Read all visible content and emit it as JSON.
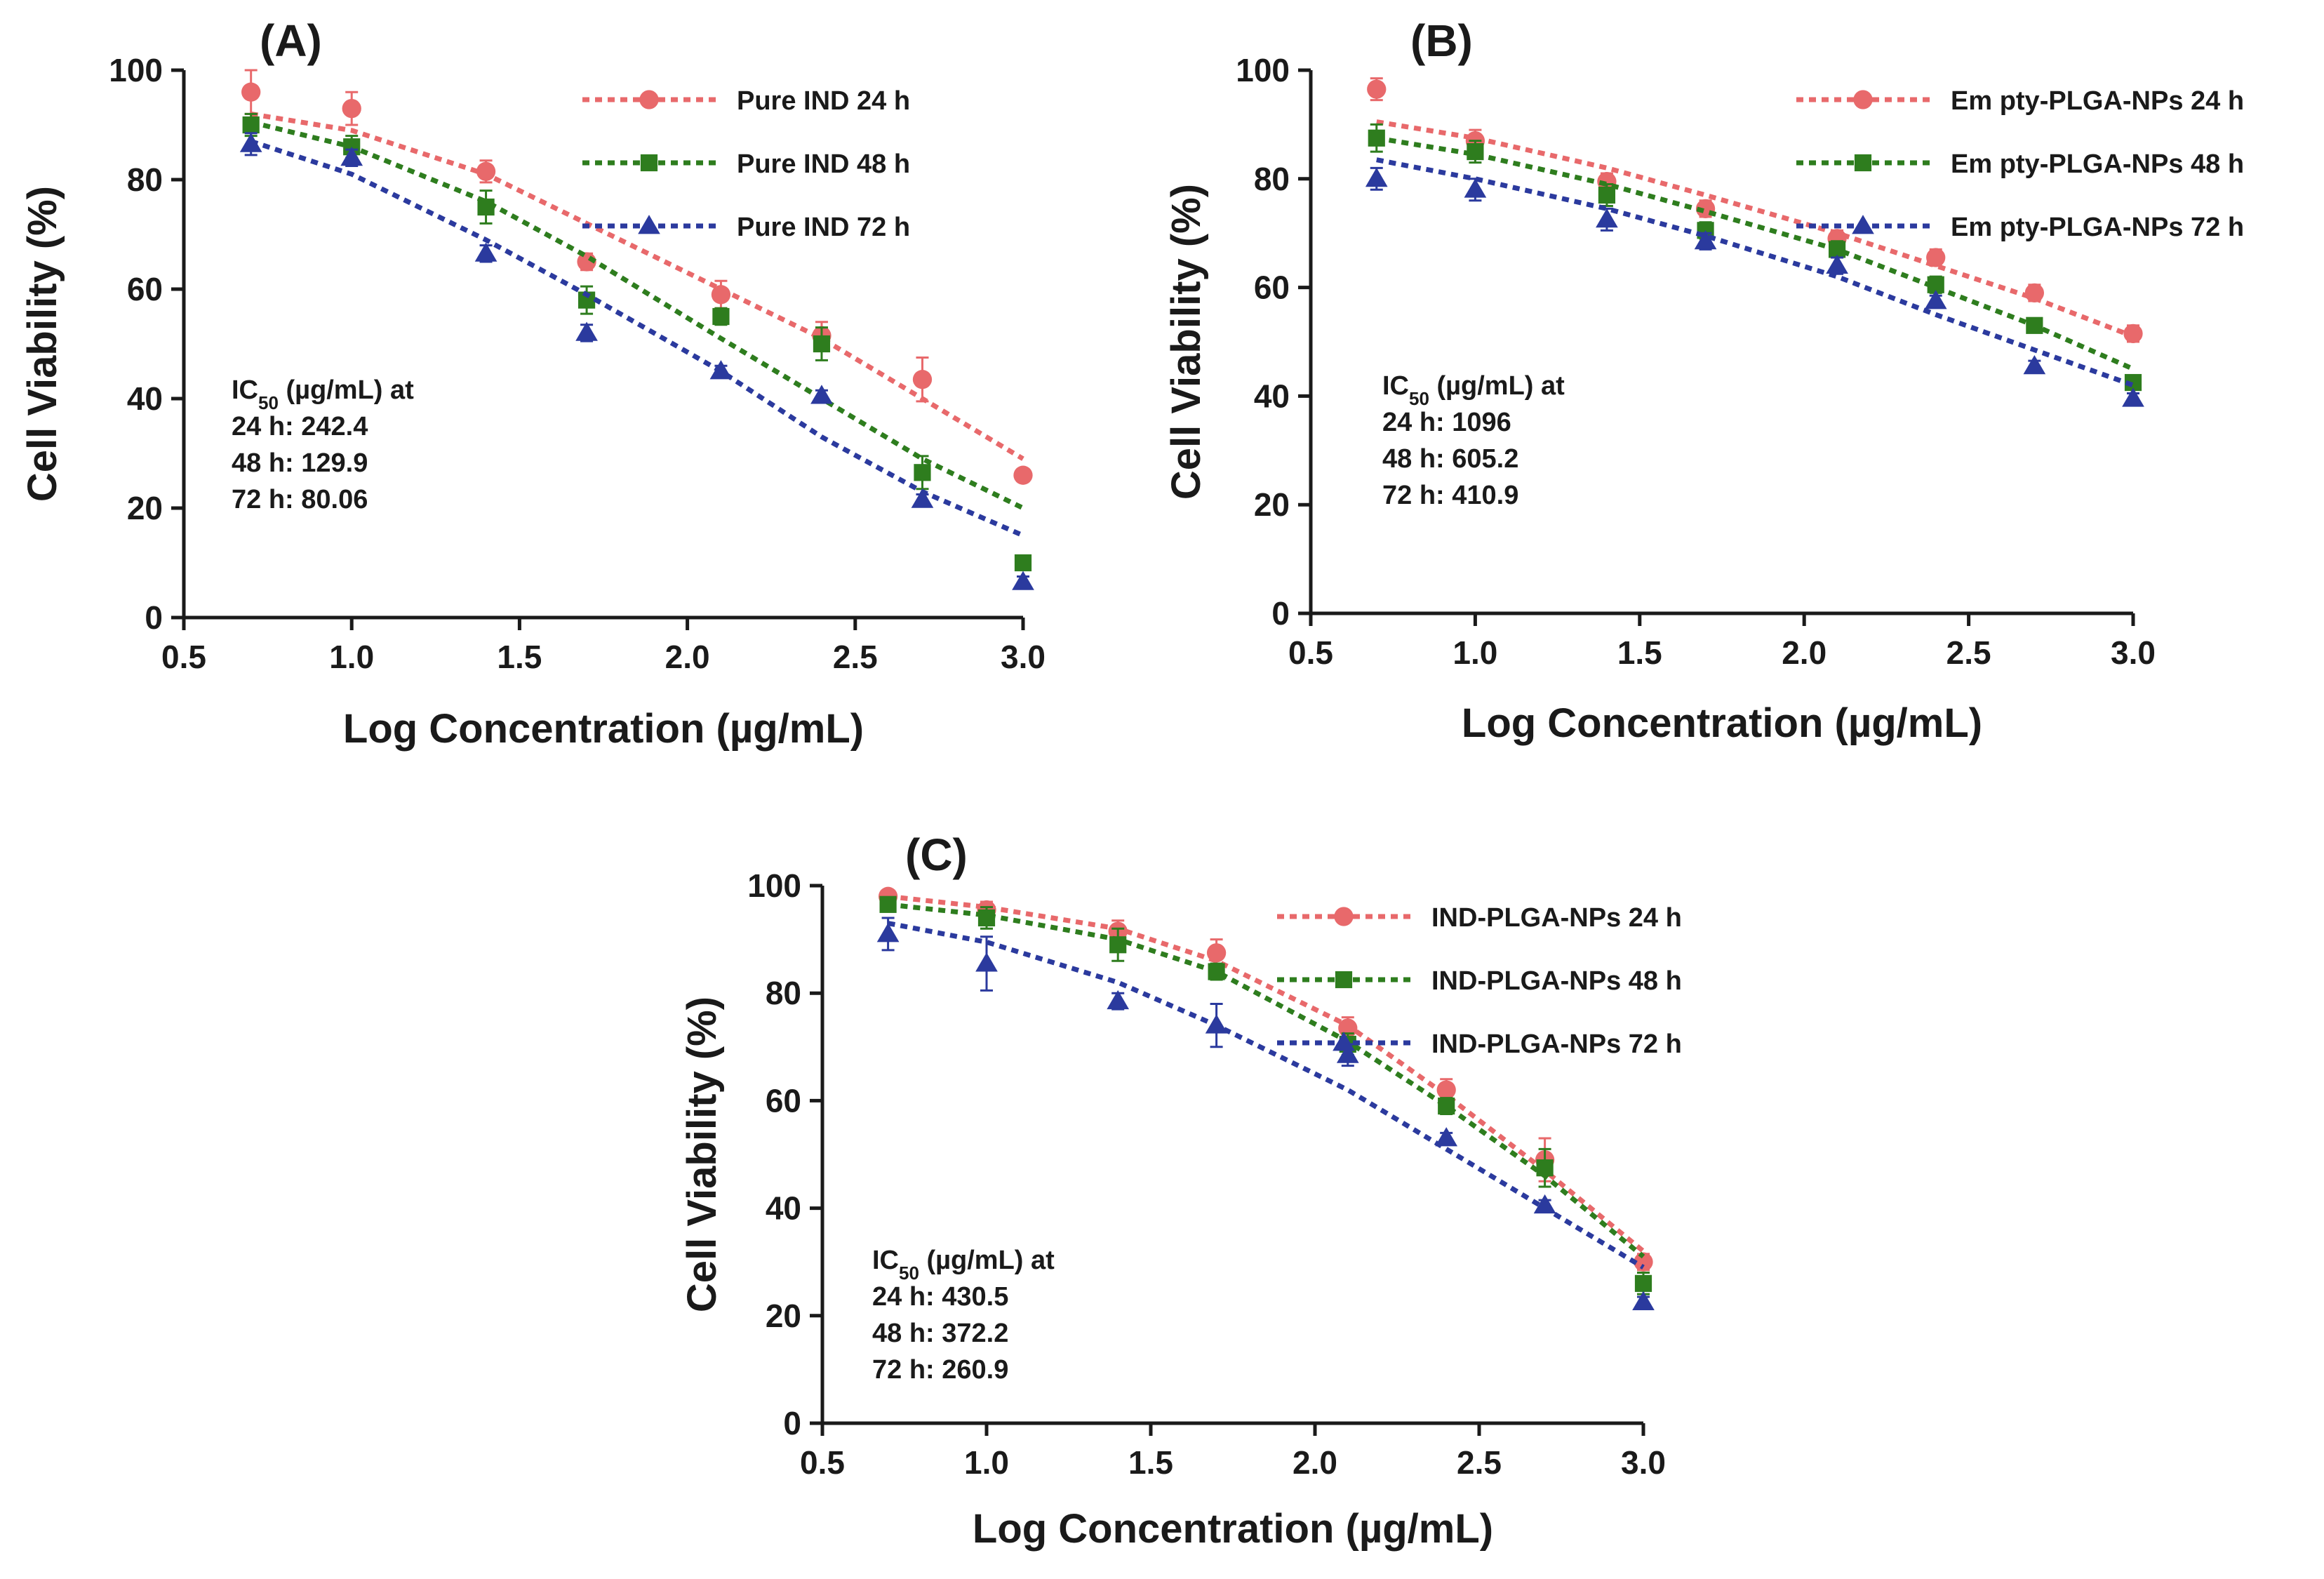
{
  "chart_data": [
    {
      "type": "line",
      "panel_label": "(A)",
      "xlabel": "Log Concentration (µg/mL)",
      "ylabel": "Cell Viability (%)",
      "xlim": [
        0.5,
        3.0
      ],
      "ylim": [
        0,
        100
      ],
      "xticks": [
        "0.5",
        "1.0",
        "1.5",
        "2.0",
        "2.5",
        "3.0"
      ],
      "yticks": [
        "0",
        "20",
        "40",
        "60",
        "80",
        "100"
      ],
      "x": [
        0.7,
        1.0,
        1.4,
        1.7,
        2.1,
        2.4,
        2.7,
        3.0
      ],
      "legend_position": "top-right",
      "series": [
        {
          "name": "Pure IND 24 h",
          "color": "#e8696b",
          "marker": "circle",
          "values": [
            96,
            93,
            81.5,
            65,
            59,
            51.5,
            43.5,
            26
          ],
          "errors": [
            4,
            3,
            2,
            1.5,
            2.5,
            2.5,
            4,
            1
          ],
          "fit": [
            92,
            89,
            81,
            72,
            60,
            51,
            40,
            29
          ]
        },
        {
          "name": "Pure IND 48 h",
          "color": "#2e7d1e",
          "marker": "square",
          "values": [
            90,
            86,
            75,
            58,
            55,
            50,
            26.5,
            10
          ],
          "errors": [
            2,
            2,
            3,
            2.5,
            1.5,
            3,
            3,
            1
          ],
          "fit": [
            90.5,
            86,
            76,
            66,
            51,
            40,
            29,
            20
          ]
        },
        {
          "name": "Pure IND 72 h",
          "color": "#2b3a9e",
          "marker": "triangle",
          "values": [
            86.5,
            84,
            66.5,
            52,
            45,
            40.5,
            21.5,
            6.5
          ],
          "errors": [
            2,
            1.5,
            1.5,
            1.5,
            1,
            1,
            1,
            1
          ],
          "fit": [
            87,
            81,
            69,
            59,
            45,
            33,
            23,
            15
          ]
        }
      ],
      "ic50": {
        "title": "IC50 (µg/mL) at",
        "sub": "50",
        "lines": [
          "24 h: 242.4",
          "48 h: 129.9",
          "72 h: 80.06"
        ]
      }
    },
    {
      "type": "line",
      "panel_label": "(B)",
      "xlabel": "Log Concentration (µg/mL)",
      "ylabel": "Cell Viability (%)",
      "xlim": [
        0.5,
        3.0
      ],
      "ylim": [
        0,
        100
      ],
      "xticks": [
        "0.5",
        "1.0",
        "1.5",
        "2.0",
        "2.5",
        "3.0"
      ],
      "yticks": [
        "0",
        "20",
        "40",
        "60",
        "80",
        "100"
      ],
      "x": [
        0.7,
        1.0,
        1.4,
        1.7,
        2.1,
        2.4,
        2.7,
        3.0
      ],
      "legend_position": "top-right",
      "series": [
        {
          "name": "Em pty-PLGA-NPs 24 h",
          "color": "#e8696b",
          "marker": "circle",
          "values": [
            96.5,
            87,
            79.5,
            74.5,
            69,
            65.5,
            59,
            51.5
          ],
          "errors": [
            2,
            2,
            1.5,
            1.5,
            1.5,
            1.5,
            1.5,
            1.5
          ],
          "fit": [
            90.5,
            87.5,
            82,
            77,
            70,
            64,
            58,
            51
          ]
        },
        {
          "name": "Em pty-PLGA-NPs 48 h",
          "color": "#2e7d1e",
          "marker": "square",
          "values": [
            87.5,
            85,
            77,
            70.5,
            67,
            60.5,
            53,
            42.5
          ],
          "errors": [
            2.5,
            2,
            2,
            1.5,
            1.5,
            1.5,
            1,
            1
          ],
          "fit": [
            87.5,
            84.5,
            79,
            74,
            67,
            60,
            53,
            45
          ]
        },
        {
          "name": "Em pty-PLGA-NPs 72 h",
          "color": "#2b3a9e",
          "marker": "triangle",
          "values": [
            80,
            78,
            72.5,
            68.5,
            64,
            57.5,
            45.5,
            39.5
          ],
          "errors": [
            2,
            2,
            2,
            1.5,
            1.5,
            1,
            1,
            1
          ],
          "fit": [
            83.5,
            80,
            74.5,
            69.5,
            62,
            55,
            48.5,
            42
          ]
        }
      ],
      "ic50": {
        "title": "IC50 (µg/mL) at",
        "sub": "50",
        "lines": [
          "24 h: 1096",
          "48 h: 605.2",
          "72 h: 410.9"
        ]
      }
    },
    {
      "type": "line",
      "panel_label": "(C)",
      "xlabel": "Log Concentration (µg/mL)",
      "ylabel": "Cell Viability (%)",
      "xlim": [
        0.5,
        3.0
      ],
      "ylim": [
        0,
        100
      ],
      "xticks": [
        "0.5",
        "1.0",
        "1.5",
        "2.0",
        "2.5",
        "3.0"
      ],
      "yticks": [
        "0",
        "20",
        "40",
        "60",
        "80",
        "100"
      ],
      "x": [
        0.7,
        1.0,
        1.4,
        1.7,
        2.1,
        2.4,
        2.7,
        3.0
      ],
      "legend_position": "top-right",
      "series": [
        {
          "name": "IND-PLGA-NPs  24 h",
          "color": "#e8696b",
          "marker": "circle",
          "values": [
            98,
            95.5,
            91.5,
            87.5,
            73.5,
            62,
            49,
            30
          ],
          "errors": [
            1,
            1.5,
            2,
            2.5,
            2,
            2,
            4,
            1.5
          ],
          "fit": [
            98,
            96,
            92,
            86,
            74,
            61,
            47,
            32
          ]
        },
        {
          "name": "IND-PLGA-NPs 48 h",
          "color": "#2e7d1e",
          "marker": "square",
          "values": [
            96.5,
            94,
            89,
            84,
            70.5,
            59,
            47.5,
            26
          ],
          "errors": [
            1,
            2,
            3,
            1.5,
            2,
            1.5,
            3.5,
            2
          ],
          "fit": [
            96.5,
            94.5,
            90,
            84,
            71,
            59,
            46,
            31
          ]
        },
        {
          "name": "IND-PLGA-NPs 72 h",
          "color": "#2b3a9e",
          "marker": "triangle",
          "values": [
            91,
            85.5,
            78.5,
            74,
            68.5,
            53,
            40.5,
            22.5
          ],
          "errors": [
            3,
            5,
            1.5,
            4,
            2,
            1,
            1,
            1
          ],
          "fit": [
            93,
            89.5,
            82,
            74,
            62,
            51,
            40,
            29
          ]
        }
      ],
      "ic50": {
        "title": "IC50 (µg/mL) at",
        "sub": "50",
        "lines": [
          "24 h: 430.5",
          "48 h: 372.2",
          "72 h: 260.9"
        ]
      }
    }
  ]
}
